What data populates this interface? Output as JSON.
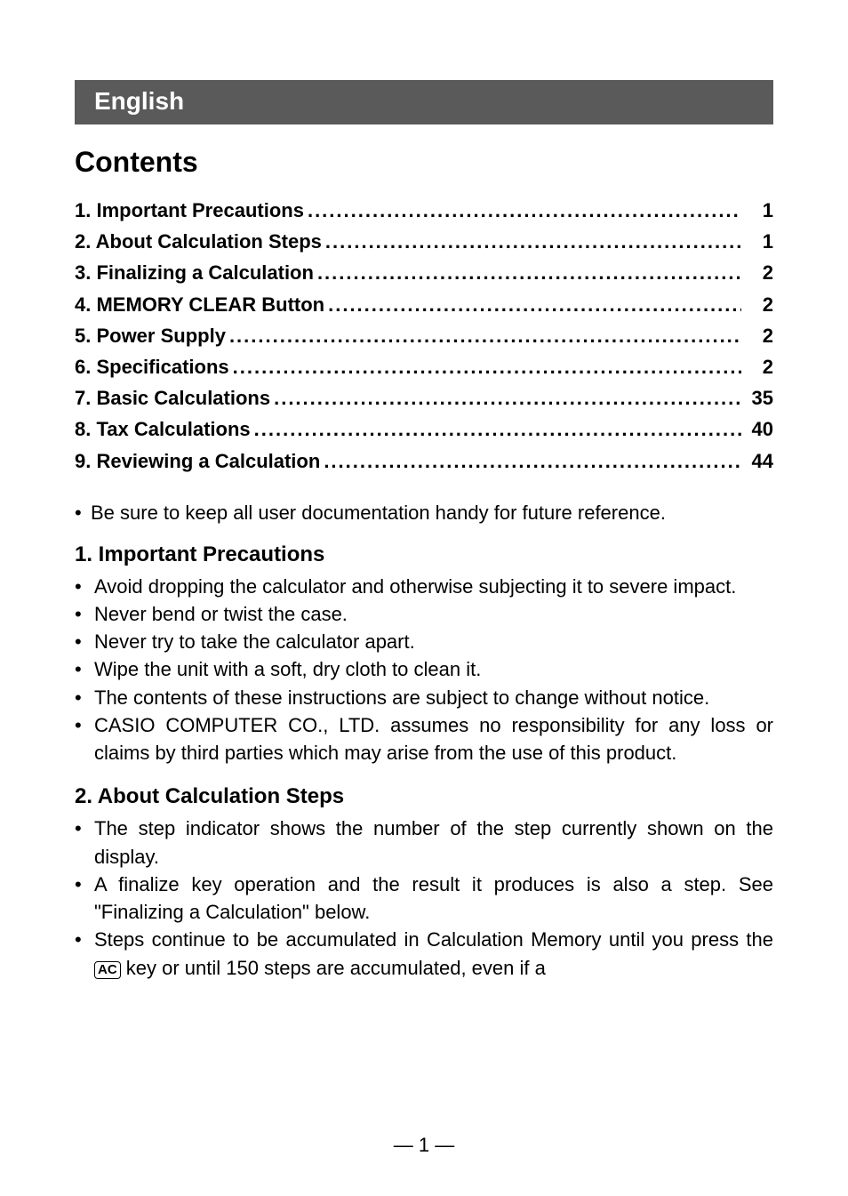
{
  "language_header": "English",
  "contents_title": "Contents",
  "toc": [
    {
      "label": "1. Important Precautions",
      "page": "1"
    },
    {
      "label": "2. About Calculation Steps",
      "page": "1"
    },
    {
      "label": "3. Finalizing a Calculation",
      "page": "2"
    },
    {
      "label": "4. MEMORY CLEAR Button",
      "page": "2"
    },
    {
      "label": "5. Power Supply",
      "page": "2"
    },
    {
      "label": "6. Specifications",
      "page": "2"
    },
    {
      "label": "7. Basic Calculations",
      "page": "35"
    },
    {
      "label": "8. Tax Calculations",
      "page": "40"
    },
    {
      "label": "9. Reviewing a Calculation",
      "page": "44"
    }
  ],
  "keep_note": "Be sure to keep all user documentation handy for future reference.",
  "section1": {
    "heading": "1. Important Precautions",
    "bullets": [
      "Avoid dropping the calculator and otherwise subjecting it to severe impact.",
      "Never bend or twist the case.",
      "Never try to take the calculator apart.",
      "Wipe the unit with a soft, dry cloth to clean it.",
      "The contents of these instructions are subject to change without notice.",
      "CASIO COMPUTER CO., LTD. assumes no responsibility for any loss or claims by third parties which may arise from the use of this product."
    ]
  },
  "section2": {
    "heading": "2. About Calculation Steps",
    "bullets": [
      "The step indicator shows the number of the step currently shown on the display.",
      "A finalize key operation and the result it produces is also a step. See \"Finalizing a Calculation\" below."
    ],
    "bullet_ac_pre": "Steps continue to be accumulated in Calculation Memory until you press the ",
    "bullet_ac_key": "AC",
    "bullet_ac_post": " key or until 150 steps are accumulated, even if a"
  },
  "page_number": "— 1 —",
  "bullet_glyph": "•"
}
